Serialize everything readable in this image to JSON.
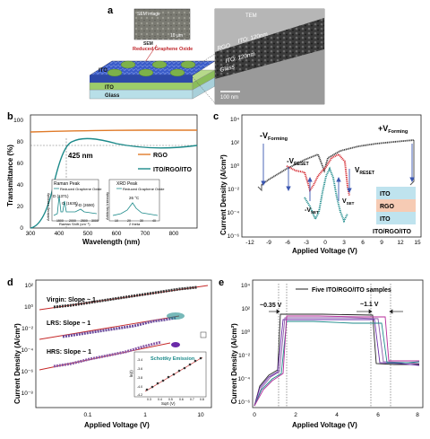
{
  "panel_a": {
    "label": "a",
    "sem_label": "SEM",
    "sem_scale": "10 μm",
    "sem_inset_text": "SEM image",
    "rgo_label": "Reduced Graphene Oxide",
    "layer_ito_top": "ITO",
    "layer_ito_bottom": "ITO",
    "layer_glass": "Glass",
    "tem_label": "TEM",
    "tem_ito_top": "ITO: 120nm",
    "tem_rgo": "RGO",
    "tem_ito_bottom": "ITO: 120nm",
    "tem_glass": "Glass",
    "tem_scale": "100 nm"
  },
  "panel_b": {
    "label": "b",
    "ylabel": "Transmittance (%)",
    "xlabel": "Wavelength (nm)",
    "yticks": [
      "0",
      "20",
      "40",
      "60",
      "80",
      "100"
    ],
    "xticks": [
      "300",
      "400",
      "500",
      "600",
      "700",
      "800"
    ],
    "annotation": "425 nm",
    "legend": [
      "RGO",
      "ITO/RGO/ITO"
    ],
    "colors": {
      "rgo": "#e07b2a",
      "trilayer": "#1c8a8a"
    },
    "inset_raman": {
      "title": "Raman Peak",
      "legend": "Reduced Graphene Oxide",
      "peak_d": "D (1371)",
      "peak_g": "G (1630)",
      "peak_2d": "2-D (2690)",
      "ylabel": "Arbitrary Intensity",
      "xlabel": "Raman Shift (cm⁻¹)",
      "xticks": [
        "1500",
        "2000",
        "2500",
        "3000"
      ]
    },
    "inset_xrd": {
      "title": "XRD Peak",
      "legend": "Reduced Graphene Oxide",
      "peak": "26 °C",
      "ylabel": "Arbitrary Intensity",
      "xlabel": "2 theta",
      "xticks": [
        "10",
        "20",
        "30",
        "40"
      ]
    }
  },
  "panel_c": {
    "label": "c",
    "ylabel": "Current Density (A/cm²)",
    "xlabel": "Applied Voltage (V)",
    "yticks": [
      "10⁴",
      "10²",
      "10⁰",
      "10⁻²",
      "10⁻⁴",
      "10⁻⁶"
    ],
    "xticks": [
      "-12",
      "-9",
      "-6",
      "-3",
      "0",
      "3",
      "6",
      "9",
      "12",
      "15"
    ],
    "ann_forming_neg": "-V",
    "ann_forming_neg_sub": "Forming",
    "ann_forming_pos": "+V",
    "ann_forming_pos_sub": "Forming",
    "ann_reset_neg": "-V",
    "ann_reset_neg_sub": "RESET",
    "ann_set_neg": "-V",
    "ann_set_neg_sub": "SET",
    "ann_set_pos": "V",
    "ann_set_pos_sub": "SET",
    "ann_reset_pos": "V",
    "ann_reset_pos_sub": "RESET",
    "stack": [
      "ITO",
      "RGO",
      "ITO"
    ],
    "stack_caption": "ITO/RGO/ITO"
  },
  "panel_d": {
    "label": "d",
    "ylabel": "Current Density (A/cm²)",
    "xlabel": "Applied Voltage (V)",
    "yticks": [
      "10²",
      "10⁰",
      "10⁻²",
      "10⁻⁴",
      "10⁻⁶",
      "10⁻⁸"
    ],
    "xticks": [
      "0.1",
      "1",
      "10"
    ],
    "virgin": "Virgin: Slope ~ 1",
    "lrs": "LRS: Slope ~ 1",
    "hrs": "HRS: Slope ~ 1",
    "inset_title": "Schottky Emission",
    "inset_ylabel": "ln(I)",
    "inset_xlabel": "Sqrt (V)",
    "inset_yticks": [
      "-3.4",
      "-3.6",
      "-3.8",
      "-4.0",
      "-4.2"
    ],
    "inset_xticks": [
      "0.3",
      "0.4",
      "0.5",
      "0.6",
      "0.7",
      "0.8"
    ]
  },
  "panel_e": {
    "label": "e",
    "ylabel": "Current Density (A/cm²)",
    "xlabel": "Applied Voltage (V)",
    "yticks": [
      "10⁴",
      "10²",
      "10⁰",
      "10⁻²",
      "10⁻⁴",
      "10⁻⁶"
    ],
    "xticks": [
      "0",
      "2",
      "4",
      "6",
      "8"
    ],
    "legend": "Five ITO/RGO/ITO samples",
    "ann_left": "~0.35 V",
    "ann_right": "~1.1 V"
  }
}
